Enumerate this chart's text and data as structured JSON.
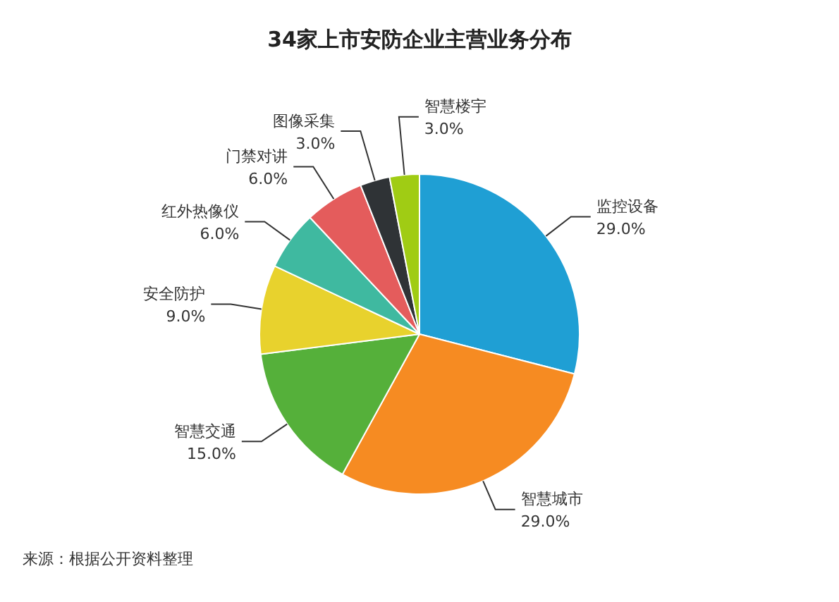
{
  "chart_data": {
    "type": "pie",
    "title": "34家上市安防企业主营业务分布",
    "categories": [
      "监控设备",
      "智慧城市",
      "智慧交通",
      "安全防护",
      "红外热像仪",
      "门禁对讲",
      "图像采集",
      "智慧楼宇"
    ],
    "values": [
      29,
      29,
      15,
      9,
      6,
      6,
      3,
      3
    ],
    "colors": [
      "#1f9fd4",
      "#f68b22",
      "#55b03a",
      "#e8d22d",
      "#3fb9a0",
      "#e45c5c",
      "#2f3336",
      "#a0cc14"
    ],
    "value_labels": [
      "29.0%",
      "29.0%",
      "15.0%",
      "9.0%",
      "6.0%",
      "6.0%",
      "3.0%",
      "3.0%"
    ],
    "annotations": [
      "来源：根据公开资料整理"
    ]
  }
}
